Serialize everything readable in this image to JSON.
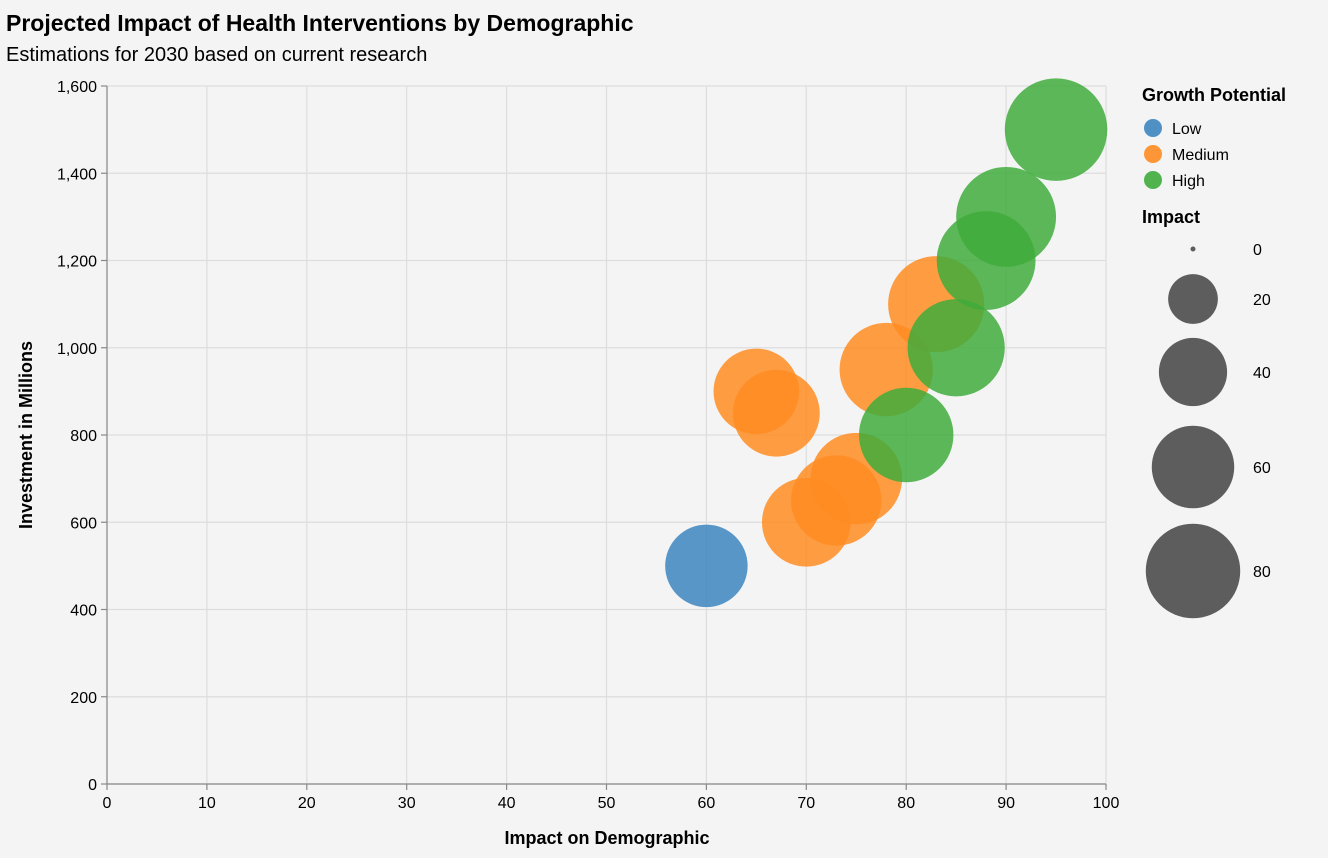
{
  "chart_data": {
    "type": "scatter",
    "title": "Projected Impact of Health Interventions by Demographic",
    "subtitle": "Estimations for 2030 based on current research",
    "xlabel": "Impact on Demographic",
    "ylabel": "Investment in Millions",
    "xlim": [
      0,
      100
    ],
    "ylim": [
      0,
      1600
    ],
    "x_ticks": [
      0,
      10,
      20,
      30,
      40,
      50,
      60,
      70,
      80,
      90,
      100
    ],
    "y_ticks": [
      0,
      200,
      400,
      600,
      800,
      1000,
      1200,
      1400,
      1600
    ],
    "y_tick_labels": [
      "0",
      "200",
      "400",
      "600",
      "800",
      "1,000",
      "1,200",
      "1,400",
      "1,600"
    ],
    "grid": true,
    "legend_position": "right",
    "color_legend": {
      "title": "Growth Potential",
      "items": [
        {
          "label": "Low",
          "color": "#3d85c0"
        },
        {
          "label": "Medium",
          "color": "#ff8c22"
        },
        {
          "label": "High",
          "color": "#3fac3b"
        }
      ]
    },
    "size_legend": {
      "title": "Impact",
      "values": [
        0,
        20,
        40,
        60,
        80
      ],
      "labels": [
        "0",
        "20",
        "40",
        "60",
        "80"
      ]
    },
    "points": [
      {
        "x": 60,
        "y": 500,
        "size": 60,
        "growth": "Low"
      },
      {
        "x": 70,
        "y": 600,
        "size": 70,
        "growth": "Medium"
      },
      {
        "x": 73,
        "y": 650,
        "size": 73,
        "growth": "Medium"
      },
      {
        "x": 75,
        "y": 700,
        "size": 75,
        "growth": "Medium"
      },
      {
        "x": 65,
        "y": 900,
        "size": 65,
        "growth": "Medium"
      },
      {
        "x": 67,
        "y": 850,
        "size": 67,
        "growth": "Medium"
      },
      {
        "x": 78,
        "y": 950,
        "size": 78,
        "growth": "Medium"
      },
      {
        "x": 83,
        "y": 1100,
        "size": 83,
        "growth": "Medium"
      },
      {
        "x": 80,
        "y": 800,
        "size": 80,
        "growth": "High"
      },
      {
        "x": 85,
        "y": 1000,
        "size": 85,
        "growth": "High"
      },
      {
        "x": 88,
        "y": 1200,
        "size": 88,
        "growth": "High"
      },
      {
        "x": 90,
        "y": 1300,
        "size": 90,
        "growth": "High"
      },
      {
        "x": 95,
        "y": 1500,
        "size": 95,
        "growth": "High"
      }
    ]
  }
}
